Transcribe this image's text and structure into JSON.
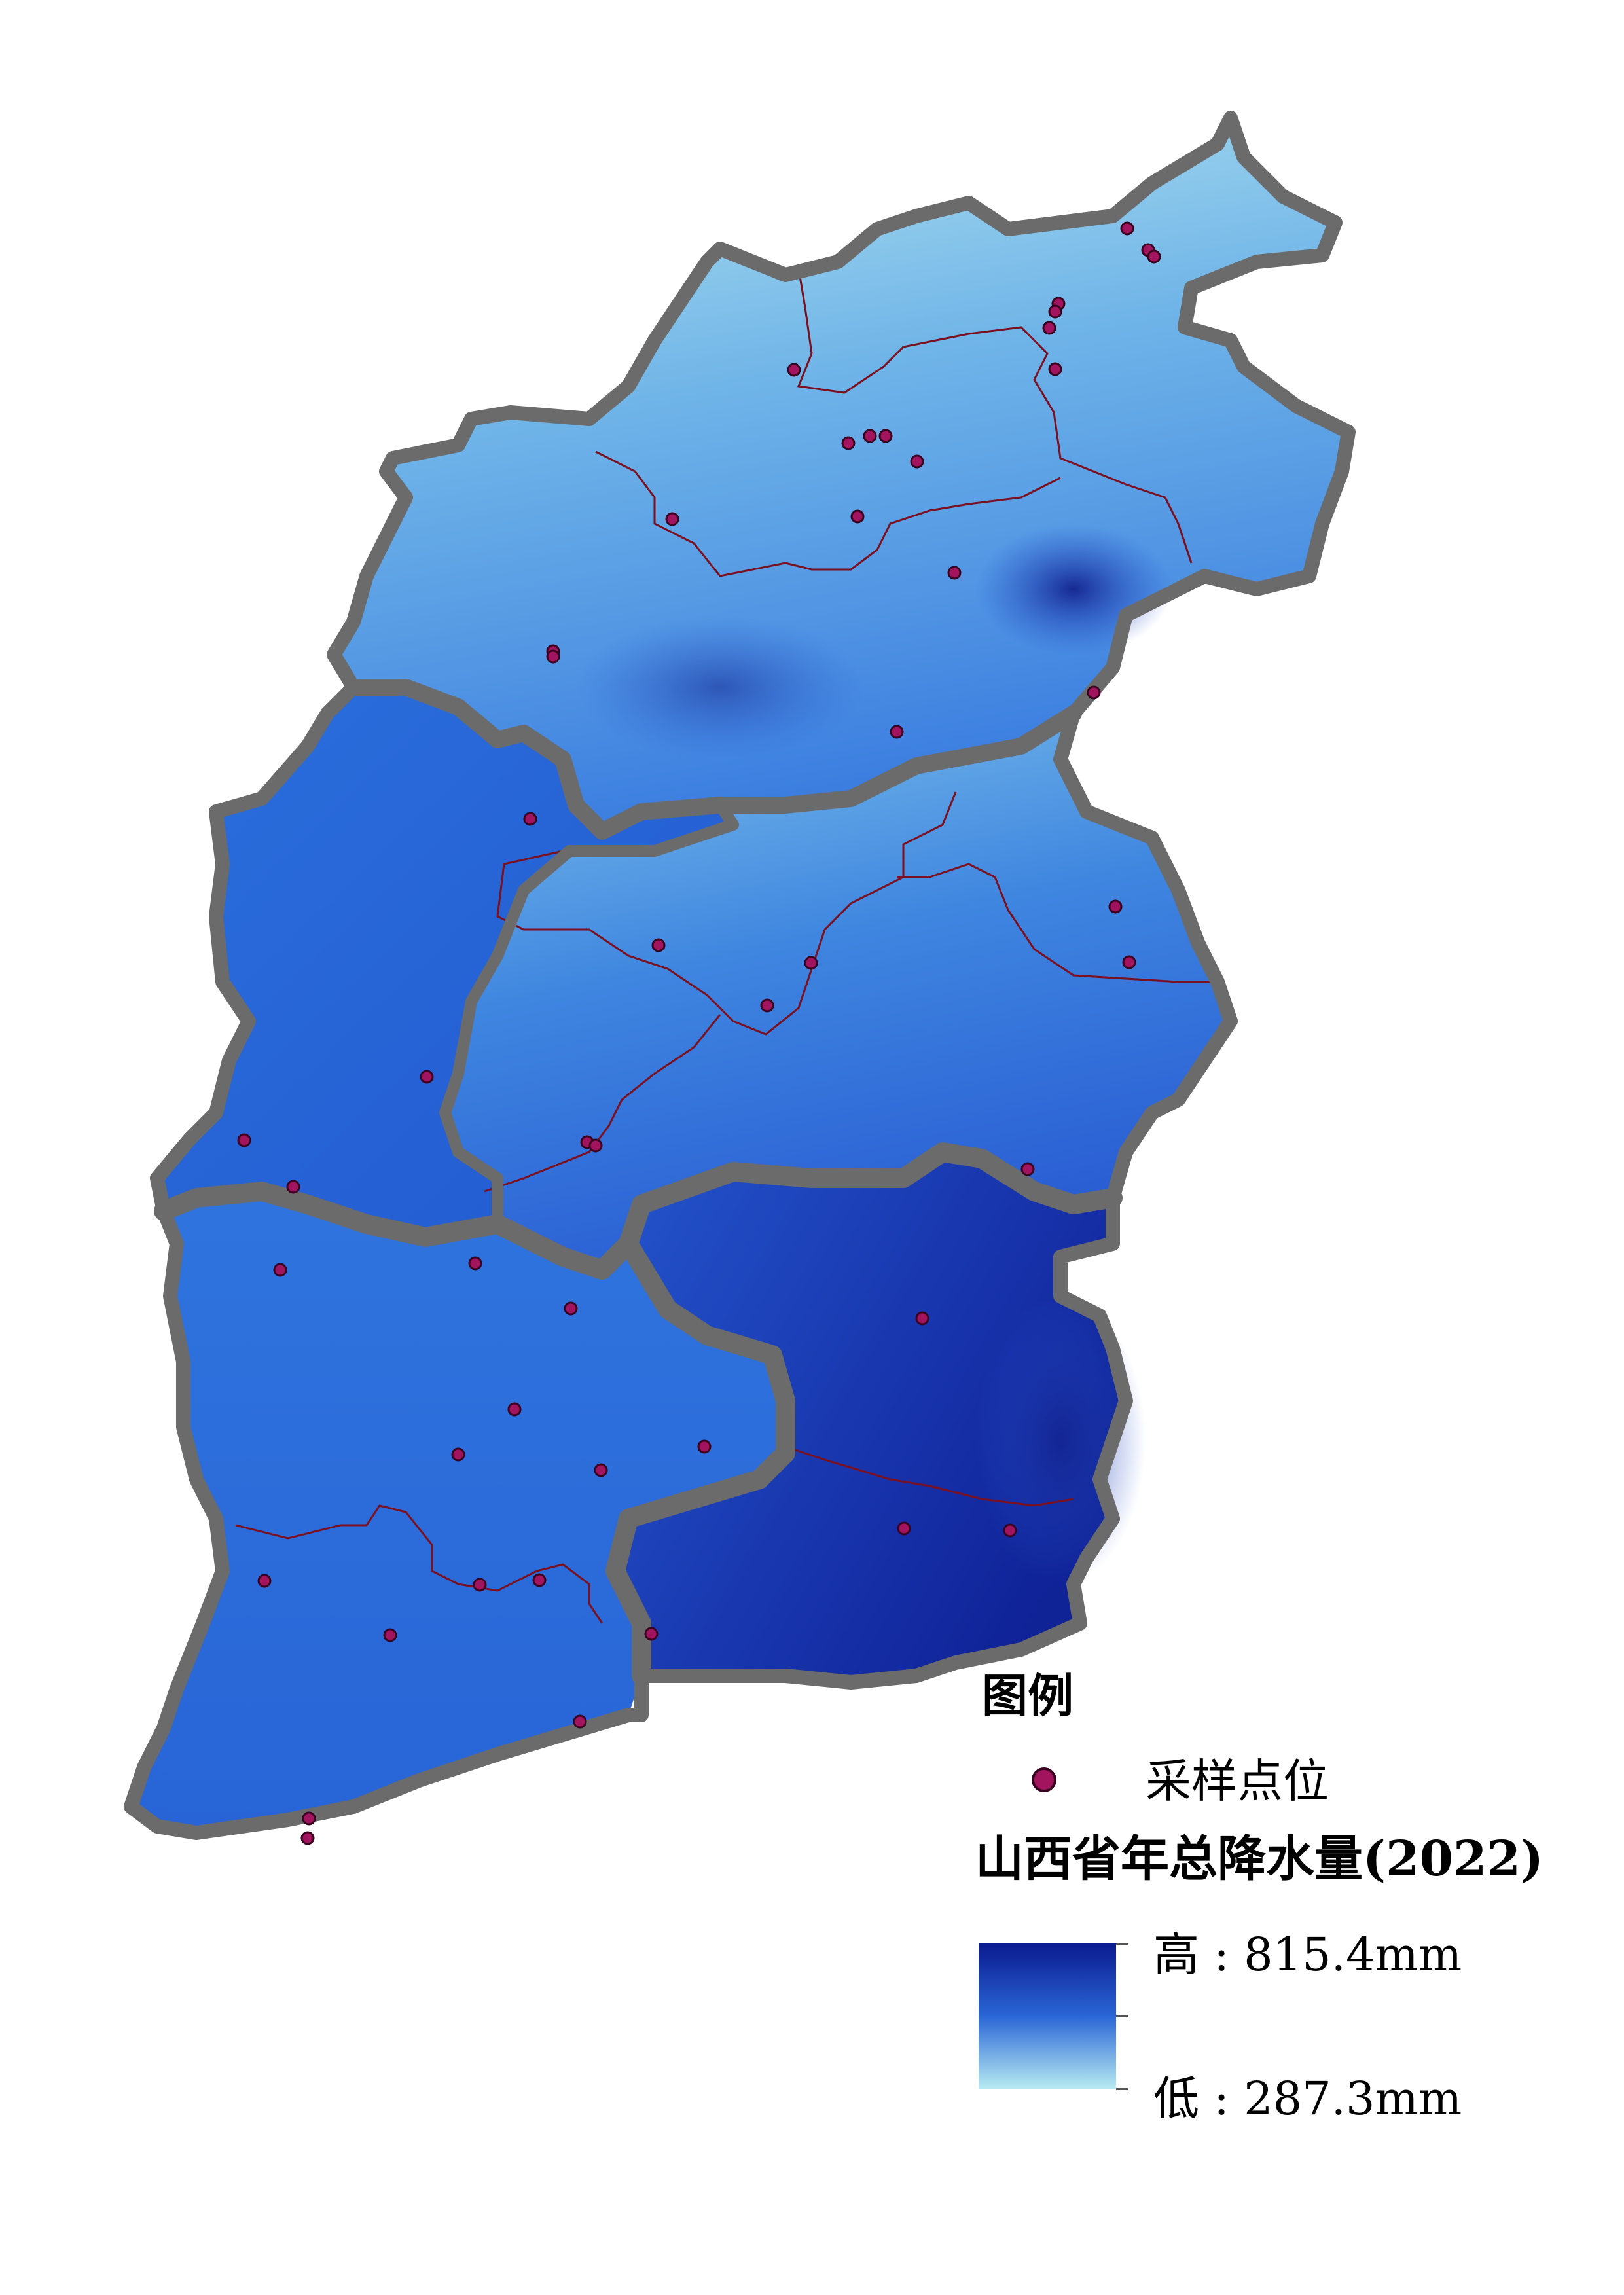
{
  "map": {
    "region": "山西省",
    "colors": {
      "boundary": "#6b6b6b",
      "inner_boundary": "#7a1020",
      "sample_fill": "#a3145f",
      "sample_stroke": "#3a0020",
      "precip_high": "#0b1a8f",
      "precip_mid": "#2a66d6",
      "precip_low": "#b9ecf2"
    },
    "sample_points_count": 54
  },
  "legend": {
    "heading": "图例",
    "sample_label": "采样点位",
    "ramp_title": "山西省年总降水量(2022)",
    "high_label": "高 : 815.4mm",
    "low_label": "低 : 287.3mm",
    "high_value": 815.4,
    "low_value": 287.3,
    "unit": "mm"
  }
}
